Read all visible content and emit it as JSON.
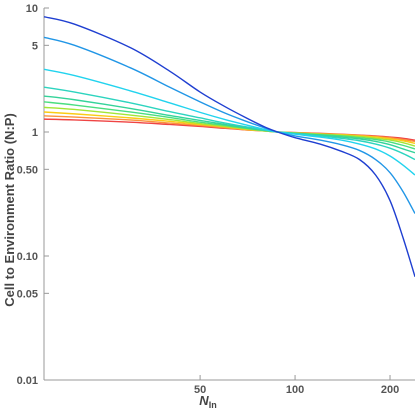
{
  "chart_data": {
    "type": "line",
    "title": "",
    "xlabel_main": "N",
    "xlabel_sub": "In",
    "ylabel": "Cell to Environment Ratio (N:P)",
    "x_scale": "log",
    "y_scale": "log",
    "xlim": [
      16,
      240
    ],
    "ylim": [
      0.01,
      10
    ],
    "x_ticks": [
      {
        "value": 50,
        "label": "50"
      },
      {
        "value": 100,
        "label": "100"
      },
      {
        "value": 200,
        "label": "200"
      }
    ],
    "y_ticks": [
      {
        "value": 0.01,
        "label": "0.01"
      },
      {
        "value": 0.05,
        "label": "0.05"
      },
      {
        "value": 0.1,
        "label": "0.10"
      },
      {
        "value": 0.5,
        "label": "0.50"
      },
      {
        "value": 1,
        "label": "1"
      },
      {
        "value": 5,
        "label": "5"
      },
      {
        "value": 10,
        "label": "10"
      }
    ],
    "grid": false,
    "legend": "none",
    "series": [
      {
        "color": "#1f3fd1",
        "x": [
          16,
          20,
          30,
          40,
          50,
          60,
          70,
          80,
          88,
          100,
          120,
          140,
          160,
          180,
          200,
          220,
          240
        ],
        "y": [
          8.5,
          7.4,
          4.8,
          3.1,
          2.1,
          1.6,
          1.3,
          1.1,
          1.0,
          0.9,
          0.8,
          0.7,
          0.6,
          0.45,
          0.28,
          0.14,
          0.068
        ]
      },
      {
        "color": "#2196e6",
        "x": [
          16,
          20,
          30,
          40,
          50,
          60,
          70,
          80,
          88,
          100,
          120,
          140,
          160,
          180,
          200,
          220,
          240
        ],
        "y": [
          5.8,
          5.0,
          3.3,
          2.3,
          1.75,
          1.42,
          1.22,
          1.08,
          1.0,
          0.93,
          0.86,
          0.79,
          0.71,
          0.6,
          0.47,
          0.33,
          0.22
        ]
      },
      {
        "color": "#22d3ee",
        "x": [
          16,
          20,
          30,
          40,
          50,
          60,
          70,
          80,
          88,
          100,
          120,
          140,
          160,
          180,
          200,
          220,
          240
        ],
        "y": [
          3.2,
          2.85,
          2.15,
          1.72,
          1.44,
          1.26,
          1.14,
          1.05,
          1.0,
          0.96,
          0.91,
          0.86,
          0.8,
          0.73,
          0.64,
          0.54,
          0.45
        ]
      },
      {
        "color": "#2dd4bf",
        "x": [
          16,
          20,
          30,
          40,
          50,
          60,
          70,
          80,
          88,
          100,
          120,
          140,
          160,
          180,
          200,
          220,
          240
        ],
        "y": [
          2.3,
          2.1,
          1.72,
          1.46,
          1.3,
          1.18,
          1.1,
          1.04,
          1.0,
          0.97,
          0.93,
          0.89,
          0.85,
          0.8,
          0.74,
          0.67,
          0.6
        ]
      },
      {
        "color": "#34d399",
        "x": [
          16,
          20,
          30,
          40,
          50,
          60,
          70,
          80,
          88,
          100,
          120,
          140,
          160,
          180,
          200,
          220,
          240
        ],
        "y": [
          1.95,
          1.82,
          1.55,
          1.36,
          1.24,
          1.15,
          1.08,
          1.03,
          1.0,
          0.975,
          0.945,
          0.91,
          0.88,
          0.84,
          0.79,
          0.73,
          0.68
        ]
      },
      {
        "color": "#4ade80",
        "x": [
          16,
          20,
          30,
          40,
          50,
          60,
          70,
          80,
          88,
          100,
          120,
          140,
          160,
          180,
          200,
          220,
          240
        ],
        "y": [
          1.75,
          1.65,
          1.45,
          1.31,
          1.2,
          1.13,
          1.07,
          1.03,
          1.0,
          0.98,
          0.95,
          0.93,
          0.9,
          0.87,
          0.83,
          0.78,
          0.73
        ]
      },
      {
        "color": "#a3e635",
        "x": [
          16,
          20,
          30,
          40,
          50,
          60,
          70,
          80,
          88,
          100,
          120,
          140,
          160,
          180,
          200,
          220,
          240
        ],
        "y": [
          1.58,
          1.52,
          1.37,
          1.26,
          1.17,
          1.11,
          1.06,
          1.02,
          1.0,
          0.98,
          0.96,
          0.94,
          0.92,
          0.89,
          0.86,
          0.82,
          0.77
        ]
      },
      {
        "color": "#facc15",
        "x": [
          16,
          20,
          30,
          40,
          50,
          60,
          70,
          80,
          88,
          100,
          120,
          140,
          160,
          180,
          200,
          220,
          240
        ],
        "y": [
          1.45,
          1.4,
          1.3,
          1.22,
          1.15,
          1.1,
          1.05,
          1.02,
          1.0,
          0.985,
          0.965,
          0.95,
          0.93,
          0.91,
          0.88,
          0.85,
          0.81
        ]
      },
      {
        "color": "#fb923c",
        "x": [
          16,
          20,
          30,
          40,
          50,
          60,
          70,
          80,
          88,
          100,
          120,
          140,
          160,
          180,
          200,
          220,
          240
        ],
        "y": [
          1.35,
          1.32,
          1.25,
          1.18,
          1.13,
          1.08,
          1.04,
          1.02,
          1.0,
          0.99,
          0.97,
          0.955,
          0.94,
          0.92,
          0.9,
          0.87,
          0.84
        ]
      },
      {
        "color": "#ef4444",
        "x": [
          16,
          20,
          30,
          40,
          50,
          60,
          70,
          80,
          88,
          100,
          120,
          140,
          160,
          180,
          200,
          220,
          240
        ],
        "y": [
          1.27,
          1.25,
          1.2,
          1.15,
          1.11,
          1.07,
          1.04,
          1.02,
          1.0,
          0.99,
          0.975,
          0.96,
          0.945,
          0.93,
          0.91,
          0.89,
          0.86
        ]
      }
    ]
  }
}
